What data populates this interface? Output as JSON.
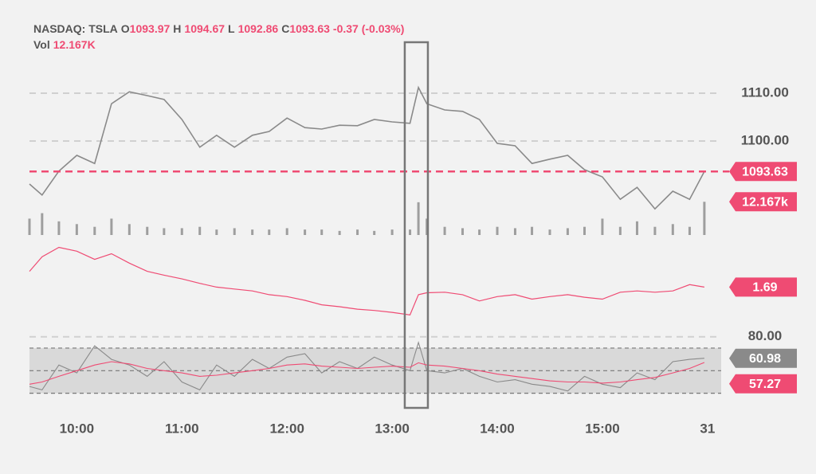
{
  "chart_data": {
    "type": "stock",
    "header": {
      "symbol": "NASDAQ: TSLA",
      "open_label": "O",
      "open": 1093.97,
      "high_label": "H",
      "high": 1094.67,
      "low_label": "L",
      "low": 1092.86,
      "close_label": "C",
      "close": 1093.63,
      "change": "-0.37 (-0.03%)",
      "volume_label": "Vol",
      "volume": "12.167K"
    },
    "x": [
      9.55,
      9.67,
      9.83,
      10,
      10.17,
      10.33,
      10.5,
      10.67,
      10.83,
      11,
      11.17,
      11.33,
      11.5,
      11.67,
      11.83,
      12,
      12.17,
      12.33,
      12.5,
      12.67,
      12.83,
      13,
      13.17,
      13.25,
      13.33,
      13.5,
      13.67,
      13.83,
      14,
      14.17,
      14.33,
      14.5,
      14.67,
      14.83,
      15,
      15.17,
      15.33,
      15.5,
      15.67,
      15.83,
      15.97
    ],
    "xlim": [
      9.55,
      16.13
    ],
    "xticks": [
      {
        "value": 10,
        "label": "10:00"
      },
      {
        "value": 11,
        "label": "11:00"
      },
      {
        "value": 12,
        "label": "12:00"
      },
      {
        "value": 13,
        "label": "13:00"
      },
      {
        "value": 14,
        "label": "14:00"
      },
      {
        "value": 15,
        "label": "15:00"
      },
      {
        "value": 16,
        "label": "31"
      }
    ],
    "highlight_x": [
      13.12,
      13.34
    ],
    "panels": [
      {
        "type": "line",
        "name": "price",
        "color": "#8a8a8a",
        "flag_color": "#ef4b73",
        "current_line": true,
        "ylim": [
          1084.5,
          1113.67
        ],
        "yticks": [
          {
            "value": 1110,
            "label": "1110.00"
          },
          {
            "value": 1100,
            "label": "1100.00"
          }
        ],
        "values": [
          1091,
          1088.7,
          1093.7,
          1097,
          1095.3,
          1107.8,
          1110.3,
          1109.5,
          1108.7,
          1104.5,
          1098.7,
          1101.2,
          1098.7,
          1101.2,
          1102,
          1104.8,
          1102.8,
          1102.5,
          1103.3,
          1103.2,
          1104.5,
          1104,
          1103.7,
          1111.2,
          1107.8,
          1106.5,
          1106.2,
          1104.5,
          1099.5,
          1099,
          1095.3,
          1096.2,
          1097,
          1094,
          1092.5,
          1087.8,
          1090.3,
          1085.8,
          1089.5,
          1087.8,
          1093.63
        ]
      },
      {
        "type": "bar",
        "name": "volume",
        "color": "#9e9e9e",
        "flag_color": "#ef4b73",
        "last_label": "12.167k",
        "ylim": [
          0,
          14000
        ],
        "values": [
          6000,
          8000,
          5000,
          4000,
          3000,
          6000,
          4000,
          3000,
          2500,
          2500,
          3000,
          2000,
          2500,
          2000,
          2000,
          2500,
          2000,
          2000,
          1500,
          2000,
          1500,
          2000,
          2000,
          12000,
          6000,
          3000,
          2500,
          2000,
          3000,
          2500,
          3000,
          2000,
          2500,
          3000,
          6000,
          3000,
          5000,
          3000,
          4000,
          3000,
          12167
        ]
      },
      {
        "type": "line",
        "name": "indicator",
        "color": "#ef4b73",
        "flag_color": "#ef4b73",
        "ylim": [
          1.19,
          2.39
        ],
        "values": [
          1.94,
          2.17,
          2.32,
          2.26,
          2.13,
          2.22,
          2.07,
          1.94,
          1.88,
          1.82,
          1.75,
          1.69,
          1.66,
          1.63,
          1.57,
          1.54,
          1.48,
          1.41,
          1.38,
          1.34,
          1.32,
          1.29,
          1.25,
          1.57,
          1.6,
          1.61,
          1.57,
          1.47,
          1.54,
          1.57,
          1.5,
          1.54,
          1.57,
          1.53,
          1.5,
          1.61,
          1.63,
          1.61,
          1.63,
          1.73,
          1.69
        ]
      },
      {
        "type": "oscillator",
        "name": "oscillator",
        "ylim": [
          22,
          89
        ],
        "yticks": [
          {
            "value": 80,
            "label": "80.00"
          }
        ],
        "band": [
          30,
          70
        ],
        "midline": 50,
        "series": [
          {
            "color": "#8a8a8a",
            "values": [
              36,
              33,
              55,
              48,
              72,
              60,
              55,
              45,
              58,
              40,
              33,
              55,
              45,
              60,
              52,
              62,
              65,
              48,
              58,
              52,
              62,
              55,
              50,
              75,
              50,
              48,
              52,
              45,
              40,
              42,
              38,
              36,
              32,
              45,
              38,
              35,
              48,
              42,
              58,
              60,
              60.98
            ]
          },
          {
            "color": "#ef4b73",
            "values": [
              38,
              40,
              45,
              50,
              55,
              58,
              56,
              52,
              50,
              48,
              45,
              46,
              48,
              50,
              52,
              55,
              56,
              54,
              53,
              52,
              53,
              54,
              53,
              57,
              55,
              54,
              52,
              50,
              47,
              45,
              43,
              41,
              40,
              40,
              39,
              40,
              42,
              44,
              48,
              52,
              57.27
            ]
          }
        ]
      }
    ]
  }
}
